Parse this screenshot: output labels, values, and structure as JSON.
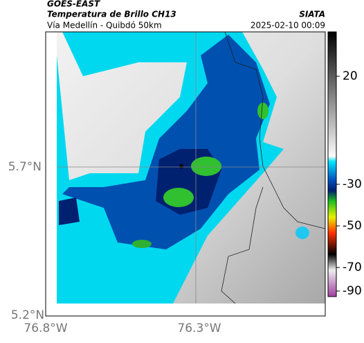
{
  "header": {
    "source": "GOES-EAST",
    "title": "Temperatura de Brillo CH13",
    "subtitle": "Vía Medellín - Quibdó 50km",
    "org": "SIATA",
    "datetime": "2025-02-10 00:09"
  },
  "map": {
    "lat_labels": [
      "5.7°N",
      "5.2°N"
    ],
    "lon_labels": [
      "76.8°W",
      "76.3°W"
    ]
  },
  "colorbar": {
    "ticks": [
      20,
      -30,
      -50,
      -70,
      -90
    ]
  }
}
